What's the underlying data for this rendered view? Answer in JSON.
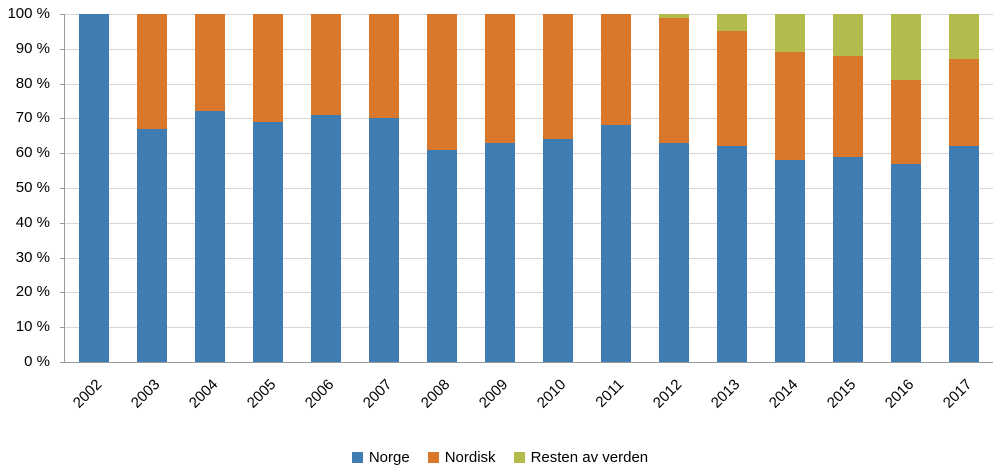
{
  "chart_data": {
    "type": "bar",
    "stacked": true,
    "percent_stacked": true,
    "title": "",
    "xlabel": "",
    "ylabel": "",
    "ylim": [
      0,
      100
    ],
    "ytick_step": 10,
    "ytick_suffix": " %",
    "grid": true,
    "legend_position": "bottom",
    "categories": [
      "2002",
      "2003",
      "2004",
      "2005",
      "2006",
      "2007",
      "2008",
      "2009",
      "2010",
      "2011",
      "2012",
      "2013",
      "2014",
      "2015",
      "2016",
      "2017"
    ],
    "series": [
      {
        "name": "Norge",
        "color": "#3E7CB1",
        "values": [
          100,
          67,
          72,
          69,
          71,
          70,
          61,
          63,
          64,
          68,
          63,
          62,
          58,
          59,
          57,
          62
        ]
      },
      {
        "name": "Nordisk",
        "color": "#D9772B",
        "values": [
          0,
          33,
          28,
          31,
          29,
          30,
          39,
          37,
          36,
          32,
          36,
          33,
          31,
          29,
          24,
          25
        ]
      },
      {
        "name": "Resten av verden",
        "color": "#B2BB4B",
        "values": [
          0,
          0,
          0,
          0,
          0,
          0,
          0,
          0,
          0,
          0,
          1,
          5,
          11,
          12,
          19,
          13
        ]
      }
    ]
  },
  "style_colors": {
    "gridline": "#d6d6d6",
    "axis": "#9a9a9a",
    "text": "#000000"
  }
}
